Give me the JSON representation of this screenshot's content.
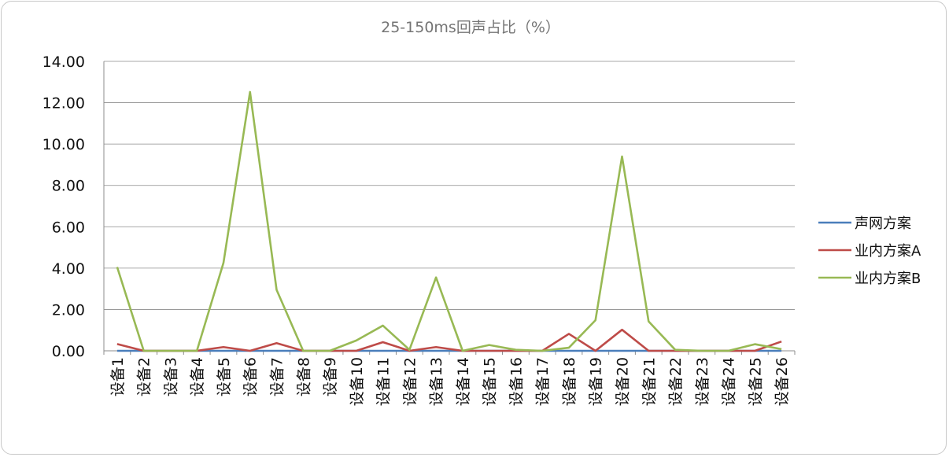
{
  "chart_data": {
    "type": "line",
    "title": "25-150ms回声占比（%）",
    "xlabel": "",
    "ylabel": "",
    "ylim": [
      0,
      14
    ],
    "ytick_labels": [
      "0.00",
      "2.00",
      "4.00",
      "6.00",
      "8.00",
      "10.00",
      "12.00",
      "14.00"
    ],
    "grid": true,
    "legend_position": "right",
    "categories": [
      "设备1",
      "设备2",
      "设备3",
      "设备4",
      "设备5",
      "设备6",
      "设备7",
      "设备8",
      "设备9",
      "设备10",
      "设备11",
      "设备12",
      "设备13",
      "设备14",
      "设备15",
      "设备16",
      "设备17",
      "设备18",
      "设备19",
      "设备20",
      "设备21",
      "设备22",
      "设备23",
      "设备24",
      "设备25",
      "设备26"
    ],
    "series": [
      {
        "name": "声网方案",
        "color": "#4a7ebb",
        "values": [
          0,
          0,
          0,
          0,
          0,
          0,
          0,
          0,
          0,
          0,
          0,
          0,
          0,
          0,
          0,
          0,
          0,
          0,
          0,
          0,
          0,
          0,
          0,
          0,
          0,
          0
        ]
      },
      {
        "name": "业内方案A",
        "color": "#be4b48",
        "values": [
          0.33,
          0,
          0,
          0,
          0.18,
          0,
          0.37,
          0,
          0,
          0,
          0.42,
          0,
          0.18,
          0,
          0,
          0,
          0,
          0.82,
          0,
          1.02,
          0,
          0,
          0,
          0,
          0,
          0.45
        ]
      },
      {
        "name": "业内方案B",
        "color": "#98b954",
        "values": [
          4.05,
          0,
          0,
          0,
          4.25,
          12.52,
          2.95,
          0,
          0,
          0.5,
          1.22,
          0.05,
          3.55,
          0,
          0.28,
          0.05,
          0,
          0.15,
          1.48,
          9.4,
          1.42,
          0.05,
          0,
          0,
          0.32,
          0.08
        ]
      }
    ]
  }
}
